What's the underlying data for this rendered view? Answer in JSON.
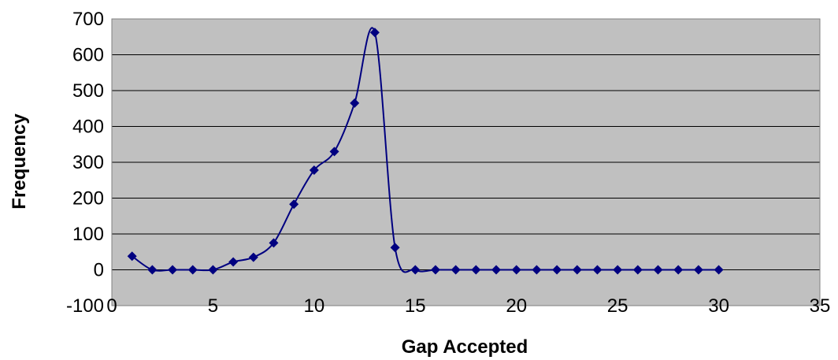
{
  "chart_data": {
    "type": "line",
    "title": "",
    "xlabel": "Gap Accepted",
    "ylabel": "Frequency",
    "xlim": [
      0,
      35
    ],
    "ylim": [
      -100,
      700
    ],
    "x_ticks": [
      0,
      5,
      10,
      15,
      20,
      25,
      30,
      35
    ],
    "y_ticks": [
      -100,
      0,
      100,
      200,
      300,
      400,
      500,
      600,
      700
    ],
    "grid": "horizontal",
    "legend": "none",
    "smoothed": true,
    "marker": "diamond",
    "colors": {
      "plot_background": "#c0c0c0",
      "series": "#000080",
      "gridline": "#000000"
    },
    "series": [
      {
        "name": "",
        "x": [
          1,
          2,
          3,
          4,
          5,
          6,
          7,
          8,
          9,
          10,
          11,
          12,
          13,
          14,
          15,
          16,
          17,
          18,
          19,
          20,
          21,
          22,
          23,
          24,
          25,
          26,
          27,
          28,
          29,
          30
        ],
        "values": [
          38,
          0,
          0,
          0,
          0,
          22,
          35,
          75,
          183,
          278,
          330,
          465,
          662,
          62,
          0,
          0,
          0,
          0,
          0,
          0,
          0,
          0,
          0,
          0,
          0,
          0,
          0,
          0,
          0,
          0
        ]
      }
    ]
  }
}
